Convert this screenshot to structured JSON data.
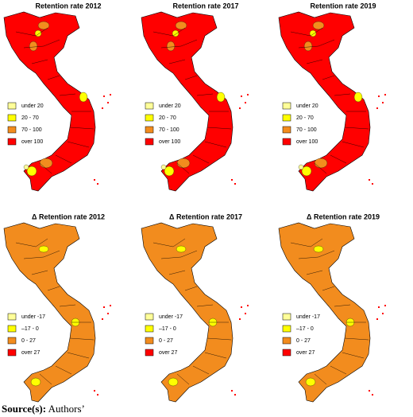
{
  "panels": [
    {
      "title": "Retention rate 2012",
      "legend": [
        {
          "label": "under 20",
          "color": "#ffff99"
        },
        {
          "label": "20 - 70",
          "color": "#ffff00"
        },
        {
          "label": "70 - 100",
          "color": "#f28c1e"
        },
        {
          "label": "over 100",
          "color": "#ff0000"
        }
      ]
    },
    {
      "title": "Retention rate 2017",
      "legend": [
        {
          "label": "under 20",
          "color": "#ffff99"
        },
        {
          "label": "20 - 70",
          "color": "#ffff00"
        },
        {
          "label": "70 - 100",
          "color": "#f28c1e"
        },
        {
          "label": "over 100",
          "color": "#ff0000"
        }
      ]
    },
    {
      "title": "Retention rate 2019",
      "legend": [
        {
          "label": "under 20",
          "color": "#ffff99"
        },
        {
          "label": "20 - 70",
          "color": "#ffff00"
        },
        {
          "label": "70 - 100",
          "color": "#f28c1e"
        },
        {
          "label": "over 100",
          "color": "#ff0000"
        }
      ]
    },
    {
      "title": "Δ Retention rate 2012",
      "legend": [
        {
          "label": "under -17",
          "color": "#ffff99"
        },
        {
          "label": "–17 - 0",
          "color": "#ffff00"
        },
        {
          "label": "0 - 27",
          "color": "#f28c1e"
        },
        {
          "label": "over 27",
          "color": "#ff0000"
        }
      ]
    },
    {
      "title": "Δ Retention rate 2017",
      "legend": [
        {
          "label": "under -17",
          "color": "#ffff99"
        },
        {
          "label": "–17 - 0",
          "color": "#ffff00"
        },
        {
          "label": "0 - 27",
          "color": "#f28c1e"
        },
        {
          "label": "over 27",
          "color": "#ff0000"
        }
      ]
    },
    {
      "title": "Δ Retention rate 2019",
      "legend": [
        {
          "label": "under -17",
          "color": "#ffff99"
        },
        {
          "label": "–17 - 0",
          "color": "#ffff00"
        },
        {
          "label": "0 - 27",
          "color": "#f28c1e"
        },
        {
          "label": "over 27",
          "color": "#ff0000"
        }
      ]
    }
  ],
  "source": {
    "label": "Source(s):",
    "text": "Authors’"
  }
}
